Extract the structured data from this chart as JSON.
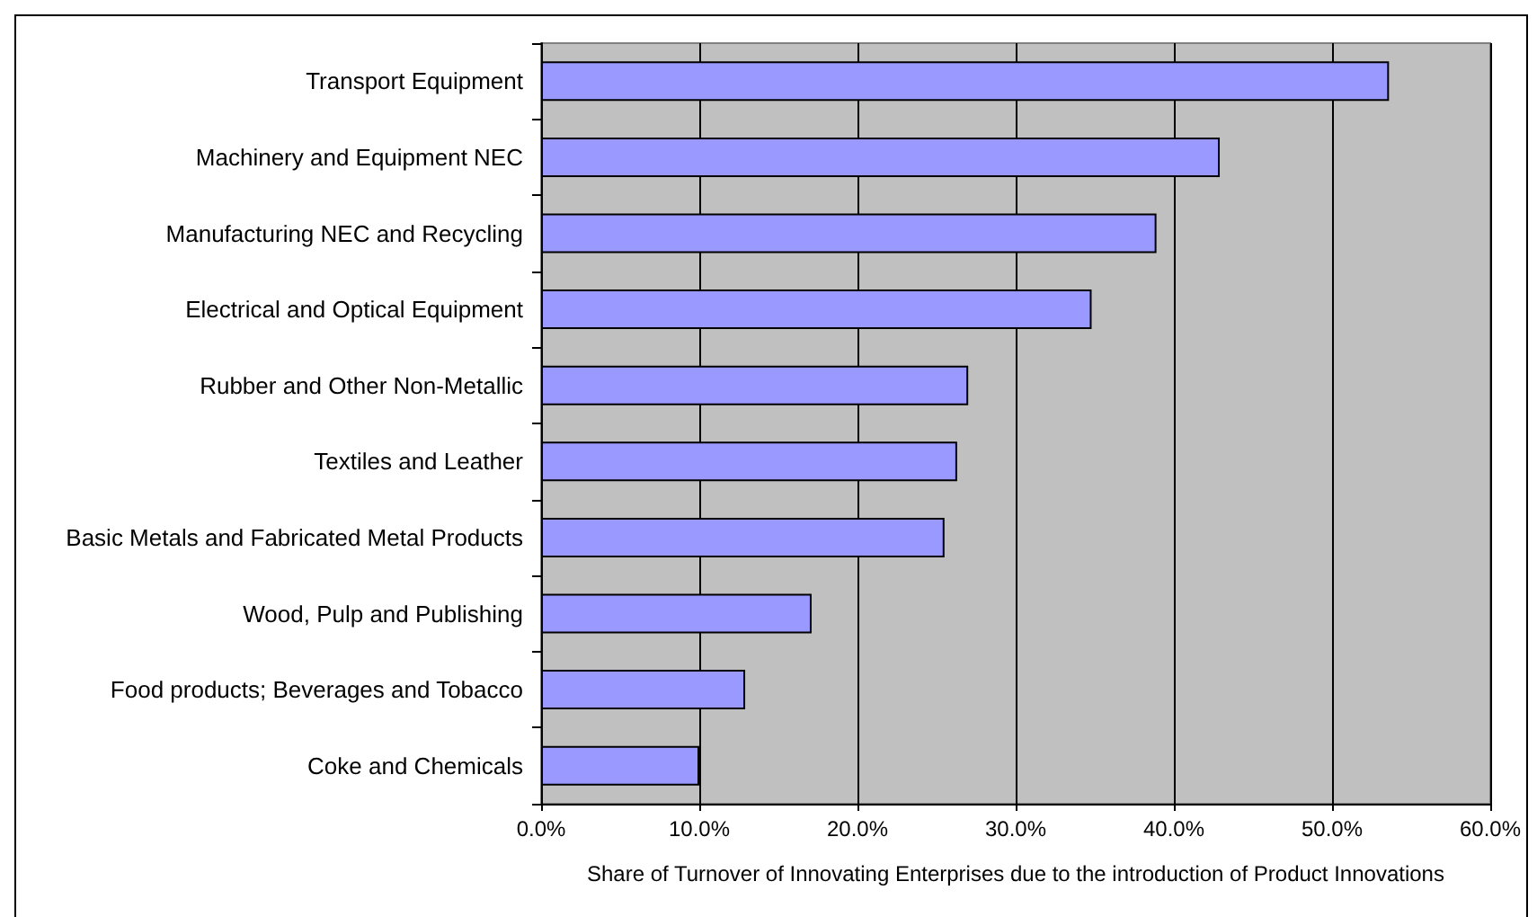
{
  "chart_data": {
    "type": "bar",
    "orientation": "horizontal",
    "xlabel": "Share of Turnover of Innovating Enterprises due to the introduction of Product Innovations",
    "categories": [
      "Transport Equipment",
      "Machinery and Equipment NEC",
      "Manufacturing NEC and Recycling",
      "Electrical and Optical Equipment",
      "Rubber and Other Non-Metallic",
      "Textiles and Leather",
      "Basic Metals and Fabricated Metal Products",
      "Wood, Pulp and Publishing",
      "Food products; Beverages and Tobacco",
      "Coke and Chemicals"
    ],
    "values": [
      53.6,
      42.9,
      38.9,
      34.8,
      27.0,
      26.3,
      25.5,
      17.1,
      12.9,
      10.0
    ],
    "color": "#9999ff",
    "xlim": [
      0,
      60
    ],
    "xticks": [
      {
        "value": 0,
        "label": "0.0%"
      },
      {
        "value": 10,
        "label": "10.0%"
      },
      {
        "value": 20,
        "label": "20.0%"
      },
      {
        "value": 30,
        "label": "30.0%"
      },
      {
        "value": 40,
        "label": "40.0%"
      },
      {
        "value": 50,
        "label": "50.0%"
      },
      {
        "value": 60,
        "label": "60.0%"
      }
    ],
    "grid": "x"
  }
}
